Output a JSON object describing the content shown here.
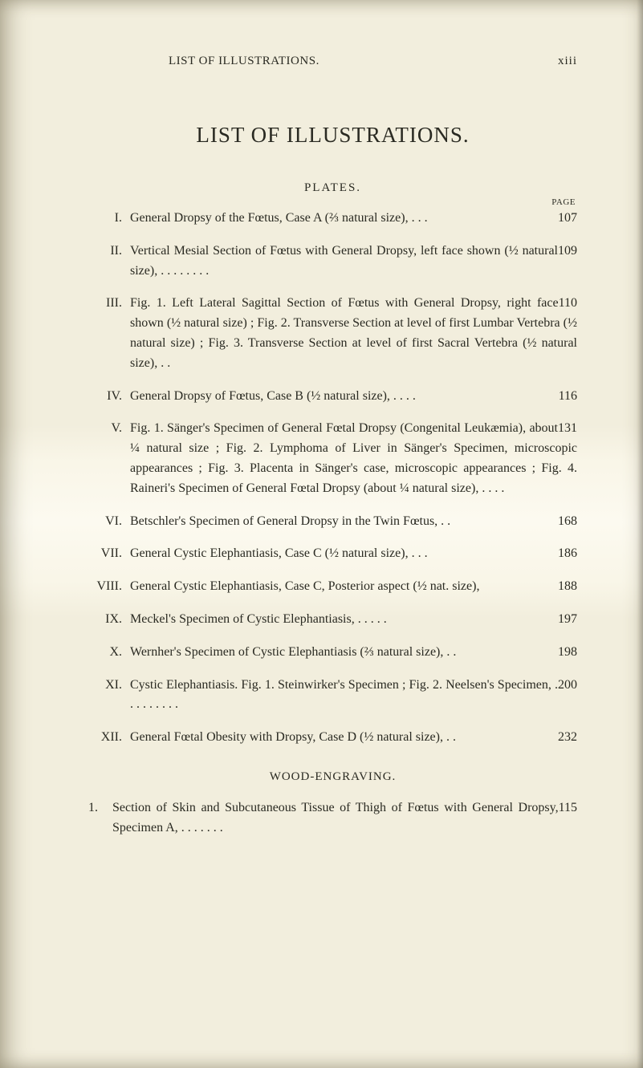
{
  "colors": {
    "page_bg": "#f2eedd",
    "text": "#2a2a22",
    "highlight_center": "#fcfaf0"
  },
  "typography": {
    "body_fontsize_pt": 12,
    "title_fontsize_pt": 20,
    "small_fontsize_pt": 8,
    "font_family": "Georgia serif"
  },
  "running_head": {
    "title": "LIST OF ILLUSTRATIONS.",
    "page_number": "xiii"
  },
  "main_title": "LIST OF ILLUSTRATIONS.",
  "plates_heading": "PLATES.",
  "page_label": "PAGE",
  "plates": [
    {
      "roman": "I.",
      "text": "General Dropsy of the Fœtus, Case A (⅔ natural size),   .     .     .",
      "page": "107"
    },
    {
      "roman": "II.",
      "text": "Vertical Mesial Section of Fœtus with General Dropsy, left face shown (½ natural size),        .     .     .     .     .     .     .     .",
      "page": "109"
    },
    {
      "roman": "III.",
      "text": "Fig. 1. Left Lateral Sagittal Section of Fœtus with General Dropsy, right face shown (½ natural size) ; Fig. 2. Transverse Section at level of first Lumbar Vertebra (½ natural size) ; Fig. 3. Transverse Section at level of first Sacral Vertebra (½ natural size),       .     .",
      "page": "110"
    },
    {
      "roman": "IV.",
      "text": "General Dropsy of Fœtus, Case B (½ natural size),  .     .     .     .",
      "page": "116"
    },
    {
      "roman": "V.",
      "text": "Fig. 1. Sänger's Specimen of General Fœtal Dropsy (Congenital Leukæmia), about ¼ natural size ; Fig. 2. Lymphoma of Liver in Sänger's Specimen, microscopic appearances ; Fig. 3. Placenta in Sänger's case, microscopic appearances ; Fig. 4. Raineri's Specimen of General Fœtal Dropsy (about ¼ natural size),   .     .     .     .",
      "page": "131"
    },
    {
      "roman": "VI.",
      "text": "Betschler's Specimen of General Dropsy in the Twin Fœtus,  .     .",
      "page": "168"
    },
    {
      "roman": "VII.",
      "text": "General Cystic Elephantiasis, Case C (½ natural size),    .     .     .",
      "page": "186"
    },
    {
      "roman": "VIII.",
      "text": "General Cystic Elephantiasis, Case C, Posterior aspect (½ nat. size),",
      "page": "188"
    },
    {
      "roman": "IX.",
      "text": "Meckel's Specimen of Cystic Elephantiasis,    .     .     .     .     .",
      "page": "197"
    },
    {
      "roman": "X.",
      "text": "Wernher's Specimen of Cystic Elephantiasis (⅔ natural size),  .     .",
      "page": "198"
    },
    {
      "roman": "XI.",
      "text": "Cystic Elephantiasis.   Fig. 1. Steinwirker's Specimen ; Fig. 2. Neelsen's Specimen,     .     .     .     .     .     .     .     .     .",
      "page": "200"
    },
    {
      "roman": "XII.",
      "text": "General Fœtal Obesity with Dropsy, Case D (½ natural size), .      .",
      "page": "232"
    }
  ],
  "wood_heading": "WOOD-ENGRAVING.",
  "wood_entries": [
    {
      "num": "1.",
      "text": "Section of Skin and Subcutaneous Tissue of Thigh of Fœtus with General Dropsy, Specimen A,        .     .     .     .     .     .     .",
      "page": "115"
    }
  ]
}
